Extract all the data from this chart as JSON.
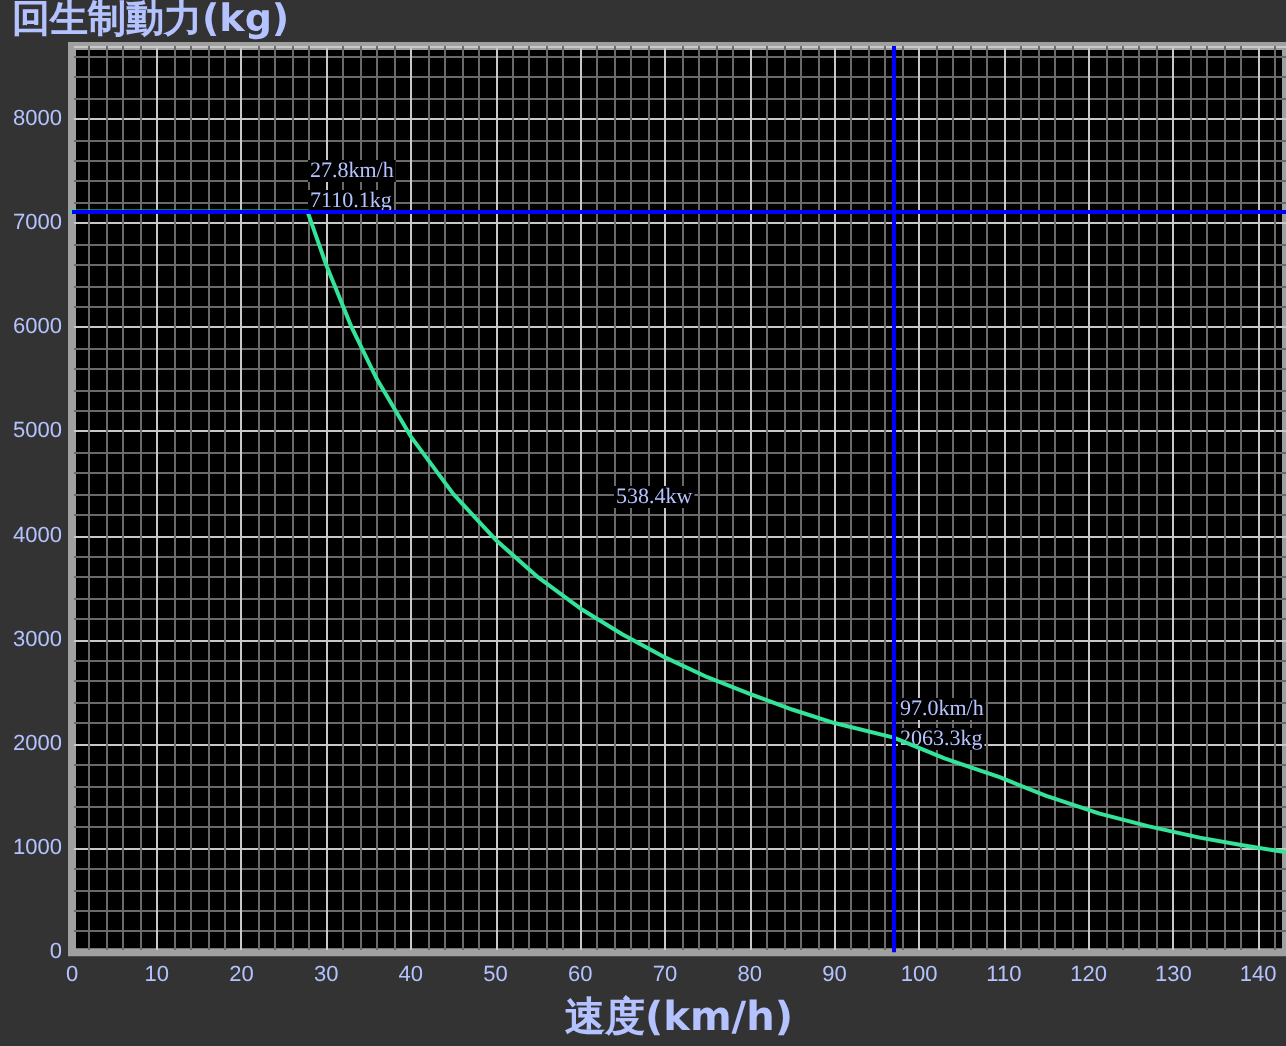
{
  "chart_data": {
    "type": "line",
    "ylabel": "回生制動力(kg)",
    "xlabel": "速度(km/h)",
    "series": [
      {
        "color": "#33e39a",
        "x": [
          0,
          10,
          20,
          27.8,
          30,
          33,
          36,
          40,
          45,
          50,
          55,
          60,
          65,
          70,
          75,
          80,
          85,
          90,
          97,
          103,
          109.5,
          115,
          121.3,
          127,
          133.1,
          138,
          143.3
        ],
        "values": [
          7110,
          7110,
          7110,
          7110,
          6600,
          6000,
          5500,
          4950,
          4400,
          3960,
          3600,
          3300,
          3050,
          2830,
          2640,
          2480,
          2330,
          2200,
          2060,
          1860,
          1680,
          1500,
          1330,
          1210,
          1100,
          1030,
          960
        ]
      }
    ],
    "xlim": [
      0,
      143.3
    ],
    "ylim": [
      0,
      8700
    ],
    "xticks": [
      0,
      10,
      20,
      30,
      40,
      50,
      60,
      70,
      80,
      90,
      100,
      110,
      120,
      130,
      140
    ],
    "yticks": [
      0,
      1000,
      2000,
      3000,
      4000,
      5000,
      6000,
      7000,
      8000
    ],
    "grid": true,
    "marker": "none",
    "line_style": "solid",
    "ref_lines": [
      {
        "axis": "y",
        "value": 7110.1,
        "color": "#0000ff"
      },
      {
        "axis": "x",
        "value": 97.0,
        "color": "#0000ff"
      }
    ],
    "annotations": [
      "27.8km/h",
      "7110.1kg",
      "538.4kw",
      "97.0km/h",
      "2063.3kg"
    ]
  }
}
